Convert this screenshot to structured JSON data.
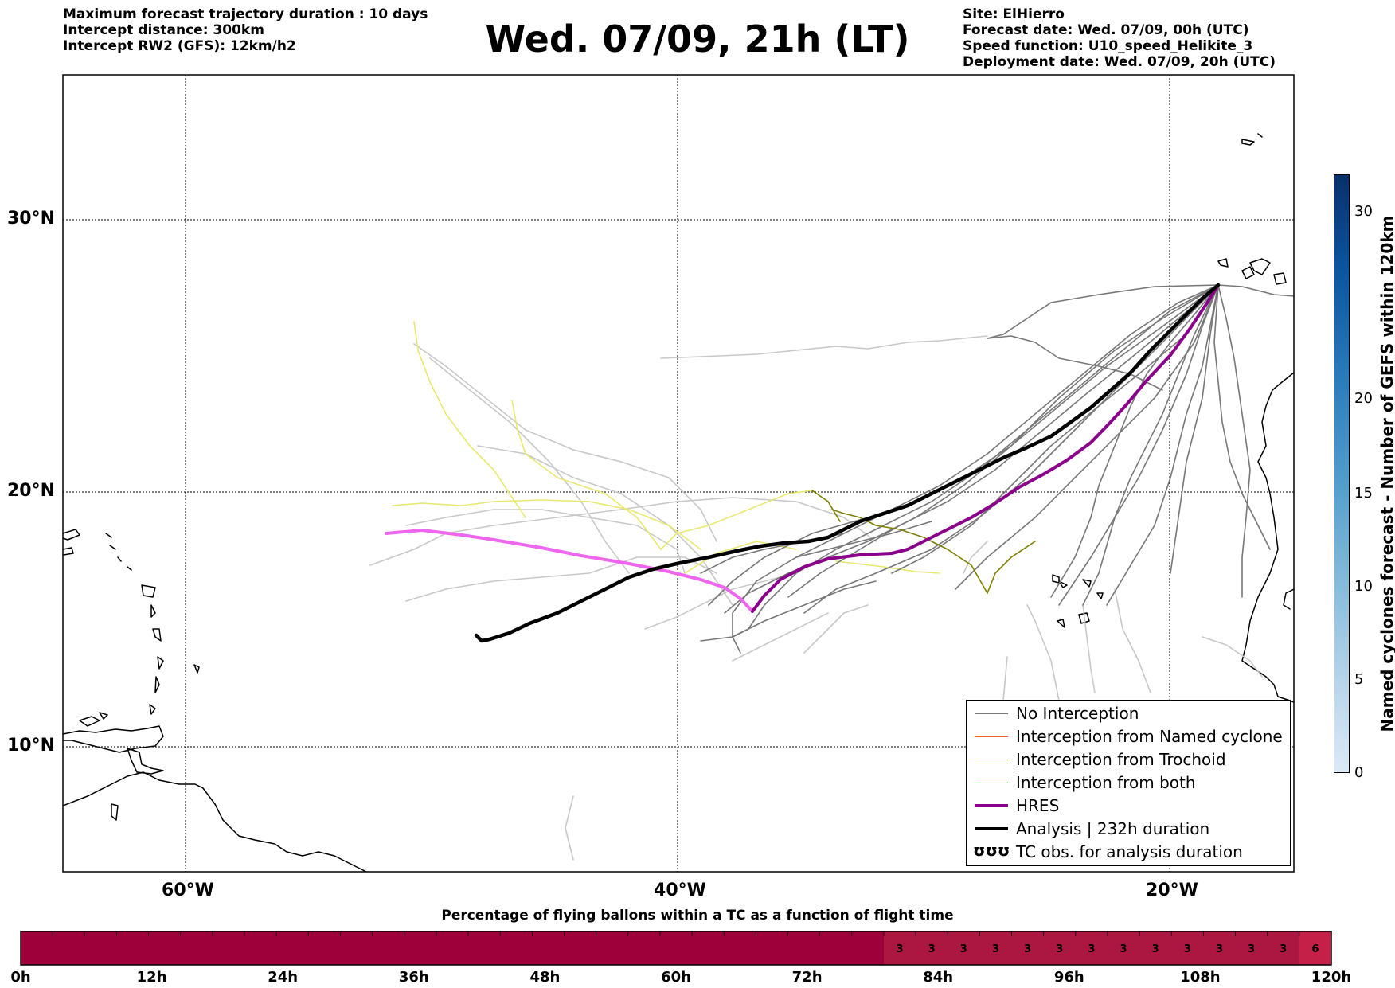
{
  "header": {
    "left_lines": [
      "Maximum forecast trajectory duration : 10 days",
      "Intercept distance: 300km",
      "Intercept RW2 (GFS):  12km/h2"
    ],
    "title": "Wed. 07/09, 21h (LT)",
    "right_lines": [
      "Site: ElHierro",
      "Forecast date: Wed. 07/09, 00h (UTC)",
      "Speed function: U10_speed_Helikite_3",
      "Deployment date: Wed. 07/09, 20h (UTC)"
    ]
  },
  "map": {
    "lat_labels": [
      "30°N",
      "20°N",
      "10°N"
    ],
    "lon_labels": [
      "60°W",
      "40°W",
      "20°W"
    ],
    "grid": "dotted",
    "colors": {
      "no_interception": "#777777",
      "interception_named": "#ff5a1f",
      "interception_trochoid": "#7f7f00",
      "interception_both": "#1a8c1a",
      "hres": "#8b008b",
      "analysis": "#000000",
      "gefs_light": "#c8c8c8",
      "gefs_yellow": "#e8e870",
      "gefs_magenta": "#ee66ee"
    }
  },
  "legend": {
    "items": [
      {
        "label": "No Interception",
        "color": "#777777",
        "width": 1.5
      },
      {
        "label": "Interception from Named cyclone",
        "color": "#ff5a1f",
        "width": 1.5
      },
      {
        "label": "Interception from Trochoid",
        "color": "#7f7f00",
        "width": 1.5
      },
      {
        "label": "Interception from both",
        "color": "#1a8c1a",
        "width": 1.5
      },
      {
        "label": "HRES",
        "color": "#8b008b",
        "width": 4
      },
      {
        "label": "Analysis | 232h duration",
        "color": "#000000",
        "width": 4
      },
      {
        "label": "TC obs. for analysis duration",
        "symbol": "ʊʊʊ"
      }
    ]
  },
  "colorbar": {
    "title": "Named cyclones forecast - Number of GEFS within 120km",
    "ticks": [
      "0",
      "5",
      "10",
      "15",
      "20",
      "30"
    ],
    "icon": "blue-gradient-colorbar"
  },
  "flight_time_bar": {
    "title": "Percentage of flying ballons within a TC as a function of flight time",
    "tick_labels": [
      "0h",
      "12h",
      "24h",
      "36h",
      "48h",
      "60h",
      "72h",
      "84h",
      "96h",
      "108h",
      "120h"
    ],
    "segment_values": [
      "0",
      "0",
      "0",
      "0",
      "0",
      "0",
      "0",
      "0",
      "0",
      "0",
      "0",
      "0",
      "0",
      "0",
      "0",
      "0",
      "0",
      "0",
      "0",
      "0",
      "0",
      "0",
      "0",
      "0",
      "0",
      "0",
      "0",
      "3",
      "3",
      "3",
      "3",
      "3",
      "3",
      "3",
      "3",
      "3",
      "3",
      "3",
      "3",
      "3",
      "6"
    ],
    "colors": {
      "zero": "#9e003a",
      "low": "#ac1742",
      "mid": "#c42048"
    }
  }
}
